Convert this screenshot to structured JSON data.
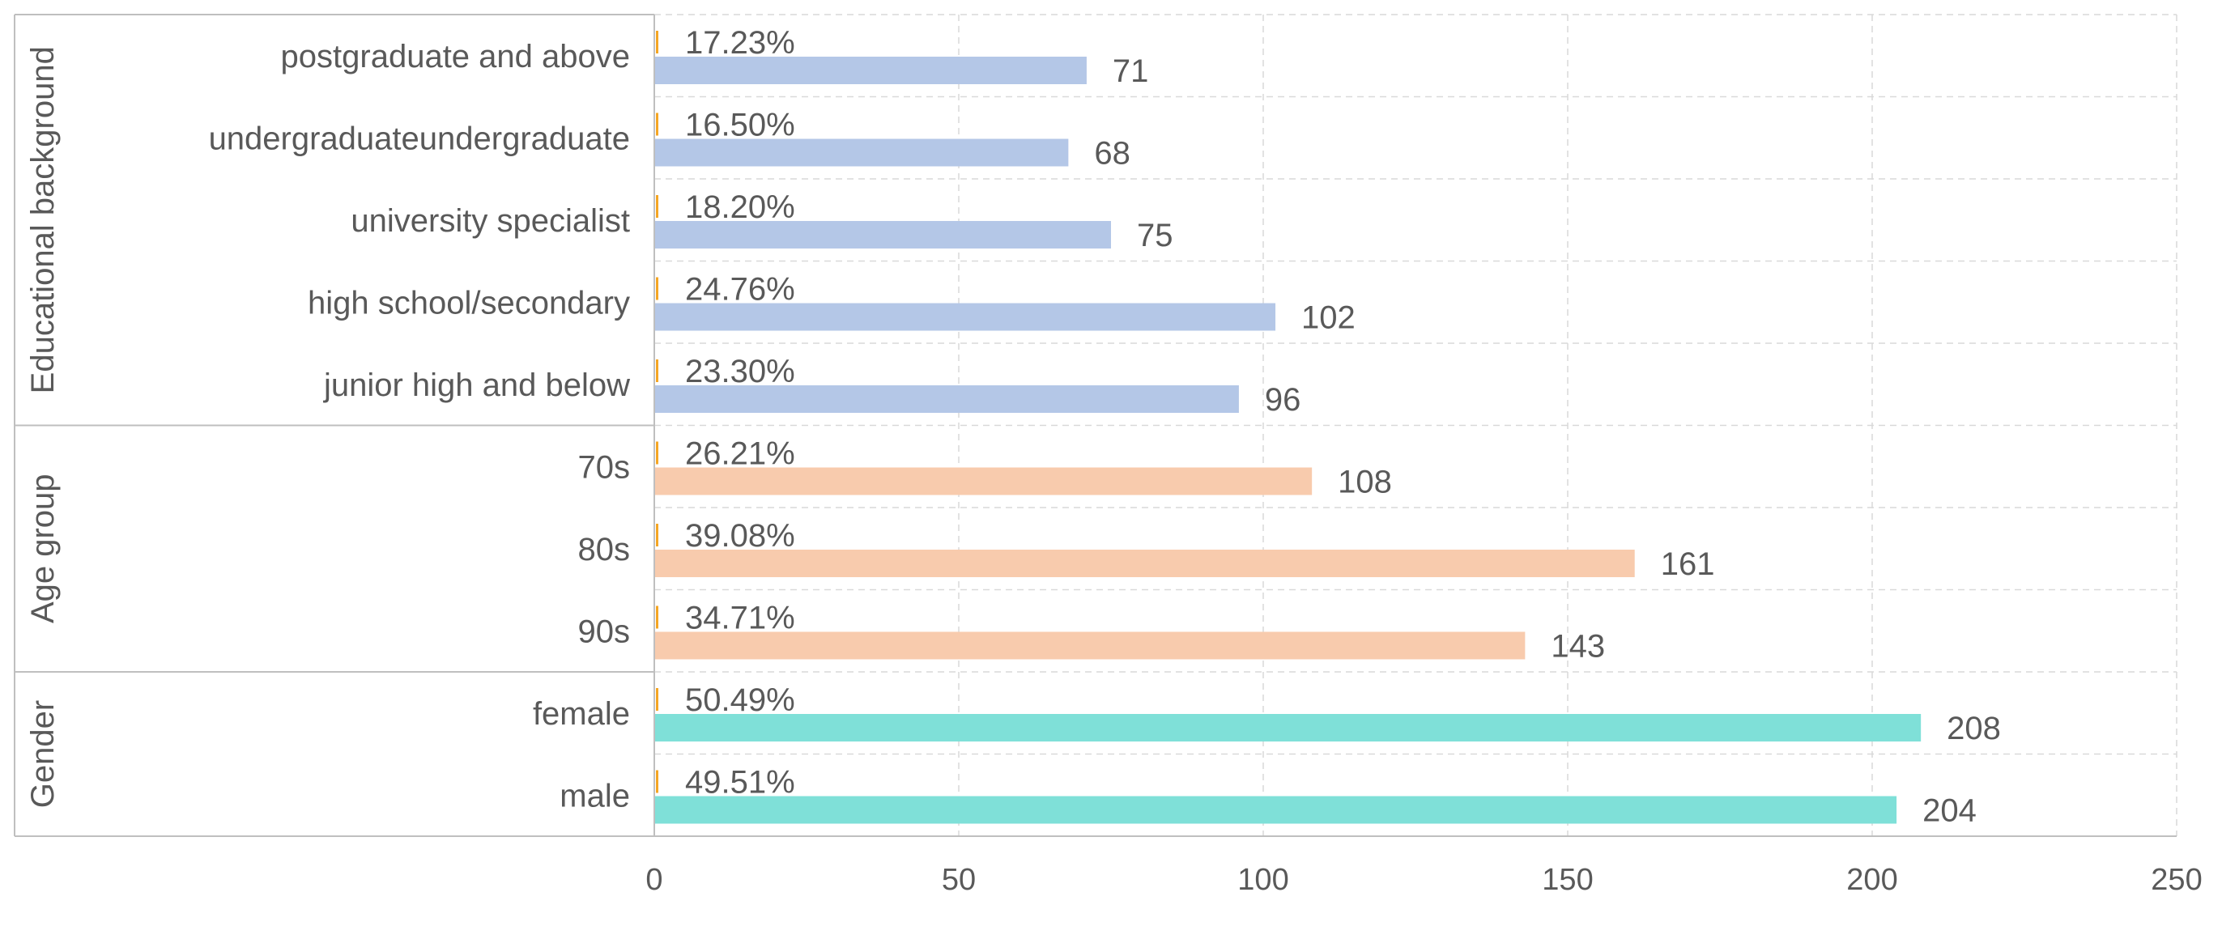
{
  "chart_data": {
    "type": "bar",
    "orientation": "horizontal",
    "title": "",
    "xlabel": "",
    "ylabel": "",
    "xlim": [
      0,
      250
    ],
    "x_ticks": [
      0,
      50,
      100,
      150,
      200,
      250
    ],
    "grid": true,
    "groups": [
      {
        "name": "Educational background",
        "color": "#b4c7e7",
        "items": [
          {
            "label": "postgraduate and above",
            "value": 71,
            "percent": "17.23%"
          },
          {
            "label": "undergraduateundergraduate",
            "value": 68,
            "percent": "16.50%"
          },
          {
            "label": "university specialist",
            "value": 75,
            "percent": "18.20%"
          },
          {
            "label": "high school/secondary",
            "value": 102,
            "percent": "24.76%"
          },
          {
            "label": "junior high and below",
            "value": 96,
            "percent": "23.30%"
          }
        ]
      },
      {
        "name": "Age group",
        "color": "#f8cbad",
        "items": [
          {
            "label": "70s",
            "value": 108,
            "percent": "26.21%"
          },
          {
            "label": "80s",
            "value": 161,
            "percent": "39.08%"
          },
          {
            "label": "90s",
            "value": 143,
            "percent": "34.71%"
          }
        ]
      },
      {
        "name": "Gender",
        "color": "#7fe0d8",
        "items": [
          {
            "label": "female",
            "value": 208,
            "percent": "50.49%"
          },
          {
            "label": "male",
            "value": 204,
            "percent": "49.51%"
          }
        ]
      }
    ],
    "percent_series_color": "#f5a623"
  }
}
